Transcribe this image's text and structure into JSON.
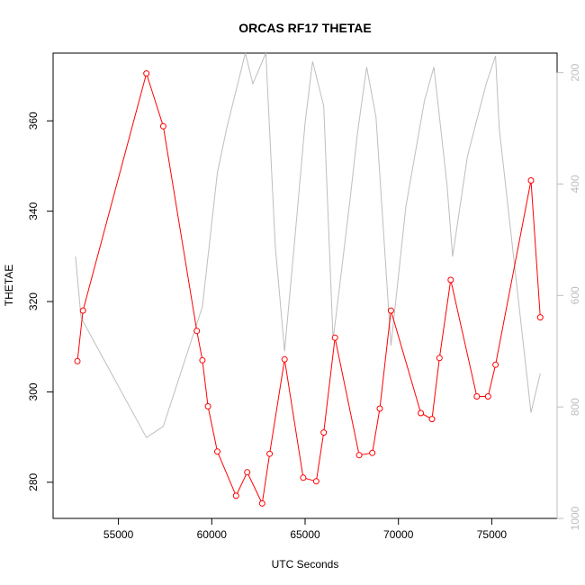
{
  "chart_data": {
    "type": "line",
    "title": "ORCAS RF17 THETAE",
    "xlabel": "UTC Seconds",
    "ylabel": "THETAE",
    "xlim": [
      51500,
      78500
    ],
    "ylim": [
      272,
      375
    ],
    "y2lim": [
      1000,
      165
    ],
    "x_ticks": [
      55000,
      60000,
      65000,
      70000,
      75000
    ],
    "y_ticks": [
      280,
      300,
      320,
      340,
      360
    ],
    "y2_ticks": [
      200,
      400,
      600,
      800,
      1000
    ],
    "grid": false,
    "series": [
      {
        "role": "primary",
        "color": "#ff0000",
        "marker": "open-circle",
        "x": [
          52800,
          53100,
          56500,
          57400,
          59200,
          59500,
          59800,
          60300,
          61300,
          61900,
          62700,
          63100,
          63900,
          64900,
          65600,
          66000,
          66600,
          67900,
          68600,
          69000,
          69600,
          71200,
          71800,
          72200,
          72800,
          74200,
          74800,
          75200,
          77100,
          77600
        ],
        "values": [
          306.8,
          318.0,
          370.5,
          358.8,
          313.5,
          307.0,
          296.8,
          286.8,
          277.0,
          282.2,
          275.3,
          286.3,
          307.2,
          281.0,
          280.2,
          291.0,
          312.0,
          286.0,
          286.5,
          296.3,
          318.0,
          295.3,
          294.0,
          307.5,
          324.8,
          299.0,
          299.0,
          306.0,
          346.8,
          316.5
        ]
      },
      {
        "role": "secondary",
        "color": "#bebebe",
        "marker": "none",
        "x": [
          52700,
          53000,
          56500,
          57400,
          59500,
          60300,
          60800,
          61800,
          62200,
          62900,
          63400,
          63900,
          64500,
          65000,
          65400,
          66000,
          66500,
          67400,
          67800,
          68300,
          68800,
          69600,
          70400,
          71400,
          71900,
          72600,
          72900,
          73700,
          74700,
          75200,
          75400,
          77100,
          77600
        ],
        "values": [
          530,
          640,
          855,
          835,
          620,
          380,
          300,
          140,
          220,
          130,
          510,
          700,
          480,
          290,
          180,
          260,
          680,
          430,
          310,
          190,
          280,
          690,
          440,
          250,
          190,
          400,
          530,
          350,
          220,
          170,
          300,
          810,
          740
        ]
      }
    ]
  }
}
